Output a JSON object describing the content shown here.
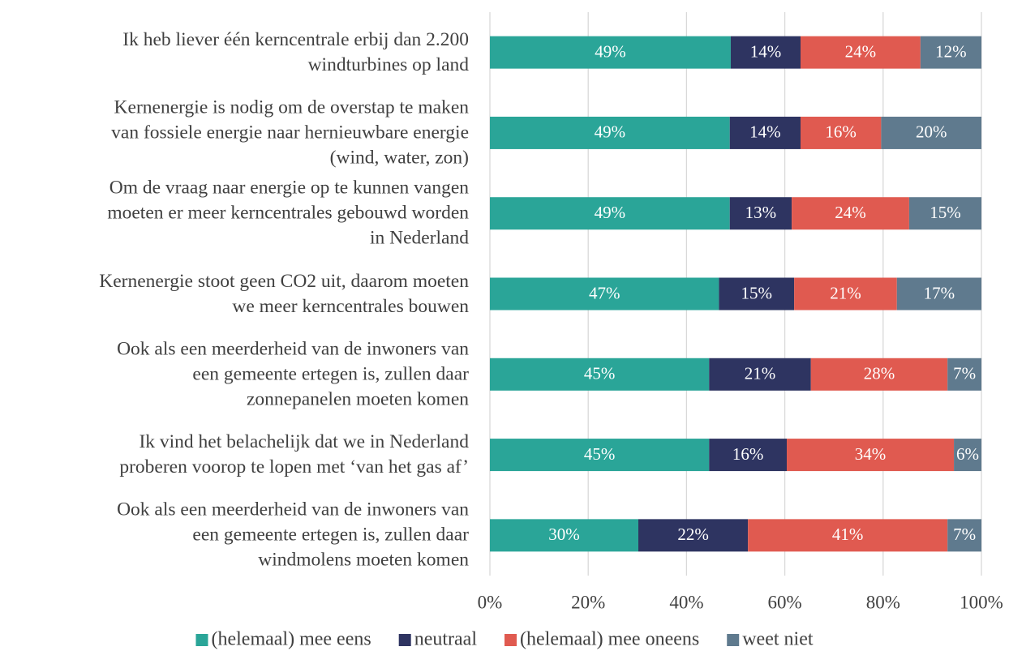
{
  "chart_data": {
    "type": "stacked_barh",
    "categories": [
      "Ik heb liever één kerncentrale erbij dan 2.200\nwindturbines op land",
      "Kernenergie is nodig om de overstap te maken\nvan fossiele energie naar hernieuwbare energie\n(wind, water, zon)",
      "Om de vraag naar energie op te kunnen vangen\nmoeten er meer kerncentrales gebouwd worden\nin Nederland",
      "Kernenergie stoot geen CO2 uit, daarom moeten\nwe meer kerncentrales bouwen",
      "Ook als een meerderheid van de inwoners van\neen gemeente ertegen is, zullen daar\nzonnepanelen moeten komen",
      "Ik vind het belachelijk dat we in Nederland\nproberen voorop te lopen met ‘van het gas af’",
      "Ook als een meerderheid van de inwoners van\neen gemeente ertegen is, zullen daar\nwindmolens moeten komen"
    ],
    "series": [
      {
        "name": "(helemaal) mee eens",
        "color": "#2aa598",
        "values": [
          49.0,
          48.8,
          48.8,
          46.6,
          44.6,
          44.6,
          30.2
        ],
        "value_labels": [
          "49%",
          "49%",
          "49%",
          "47%",
          "45%",
          "45%",
          "30%"
        ]
      },
      {
        "name": "neutraal",
        "color": "#2e3461",
        "values": [
          14.2,
          14.4,
          12.6,
          15.3,
          20.7,
          15.8,
          22.3
        ],
        "value_labels": [
          "14%",
          "14%",
          "13%",
          "15%",
          "21%",
          "16%",
          "22%"
        ]
      },
      {
        "name": "(helemaal) mee oneens",
        "color": "#e05a50",
        "values": [
          24.4,
          16.4,
          23.9,
          20.9,
          27.8,
          34.0,
          40.6
        ],
        "value_labels": [
          "24%",
          "16%",
          "24%",
          "21%",
          "28%",
          "34%",
          "41%"
        ]
      },
      {
        "name": "weet niet",
        "color": "#5f7a8e",
        "values": [
          12.4,
          20.4,
          14.7,
          17.2,
          6.9,
          5.6,
          6.9
        ],
        "value_labels": [
          "12%",
          "20%",
          "15%",
          "17%",
          "7%",
          "6%",
          "7%"
        ]
      }
    ],
    "xlim": [
      0,
      100
    ],
    "xticks": [
      {
        "value": 0,
        "label": "0%"
      },
      {
        "value": 20,
        "label": "20%"
      },
      {
        "value": 40,
        "label": "40%"
      },
      {
        "value": 60,
        "label": "60%"
      },
      {
        "value": 80,
        "label": "80%"
      },
      {
        "value": 100,
        "label": "100%"
      }
    ],
    "grid": true,
    "legend": "bottom"
  }
}
